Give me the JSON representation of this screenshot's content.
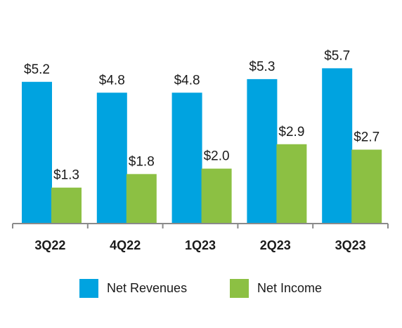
{
  "chart_data": {
    "type": "bar",
    "categories": [
      "3Q22",
      "4Q22",
      "1Q23",
      "2Q23",
      "3Q23"
    ],
    "series": [
      {
        "name": "Net Revenues",
        "color": "#00a3e0",
        "values": [
          5.2,
          4.8,
          4.8,
          5.3,
          5.7
        ],
        "value_labels": [
          "$5.2",
          "$4.8",
          "$4.8",
          "$5.3",
          "$5.7"
        ]
      },
      {
        "name": "Net Income",
        "color": "#8cc043",
        "values": [
          1.3,
          1.8,
          2.0,
          2.9,
          2.7
        ],
        "value_labels": [
          "$1.3",
          "$1.8",
          "$2.0",
          "$2.9",
          "$2.7"
        ]
      }
    ]
  }
}
